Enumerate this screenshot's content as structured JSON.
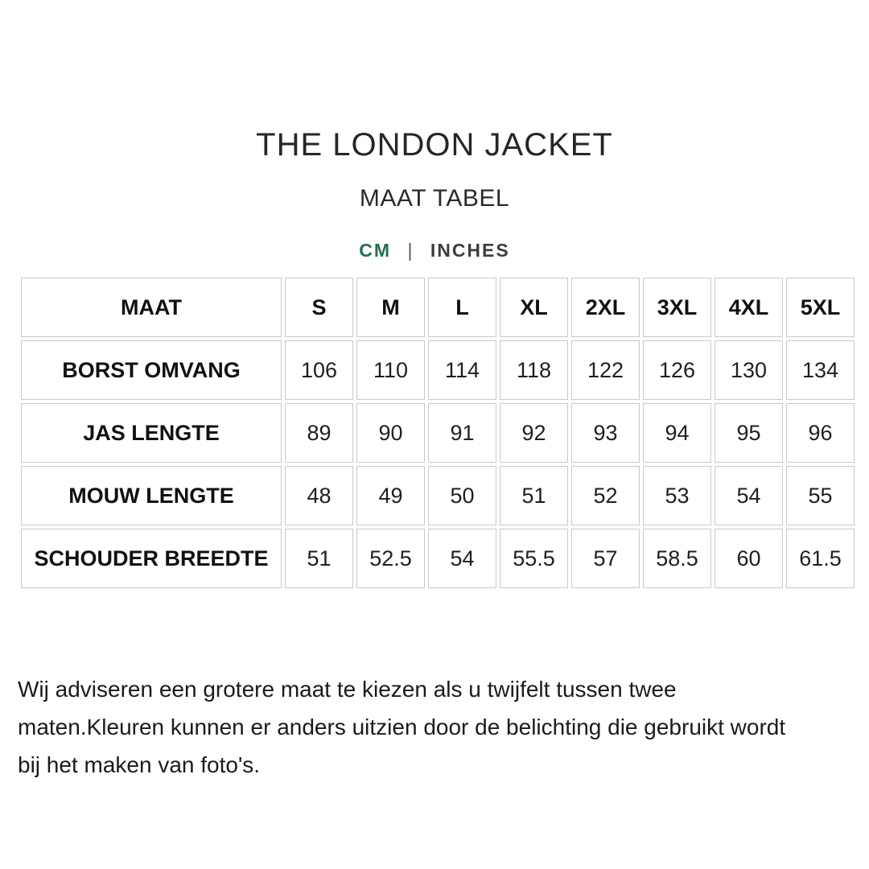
{
  "page": {
    "title": "THE LONDON JACKET",
    "subtitle": "MAAT TABEL"
  },
  "units": {
    "cm_label": "CM",
    "separator": "|",
    "inches_label": "INCHES",
    "selected": "CM"
  },
  "size_table": {
    "columns": [
      "MAAT",
      "S",
      "M",
      "L",
      "XL",
      "2XL",
      "3XL",
      "4XL",
      "5XL"
    ],
    "rows": [
      {
        "label": "BORST OMVANG",
        "values": [
          "106",
          "110",
          "114",
          "118",
          "122",
          "126",
          "130",
          "134"
        ]
      },
      {
        "label": "JAS LENGTE",
        "values": [
          "89",
          "90",
          "91",
          "92",
          "93",
          "94",
          "95",
          "96"
        ]
      },
      {
        "label": "MOUW LENGTE",
        "values": [
          "48",
          "49",
          "50",
          "51",
          "52",
          "53",
          "54",
          "55"
        ]
      },
      {
        "label": "SCHOUDER BREEDTE",
        "values": [
          "51",
          "52.5",
          "54",
          "55.5",
          "57",
          "58.5",
          "60",
          "61.5"
        ]
      }
    ]
  },
  "disclaimer_lines": [
    "Wij adviseren een grotere maat te kiezen als u twijfelt tussen twee",
    "maten.Kleuren kunnen er anders uitzien door de belichting die gebruikt wordt",
    "bij het maken van foto's."
  ],
  "colors": {
    "accent_green": "#23704d",
    "units_text": "#3d3d3d",
    "table_border": "#c9c9c9",
    "text_dark": "#1f1f1f"
  }
}
